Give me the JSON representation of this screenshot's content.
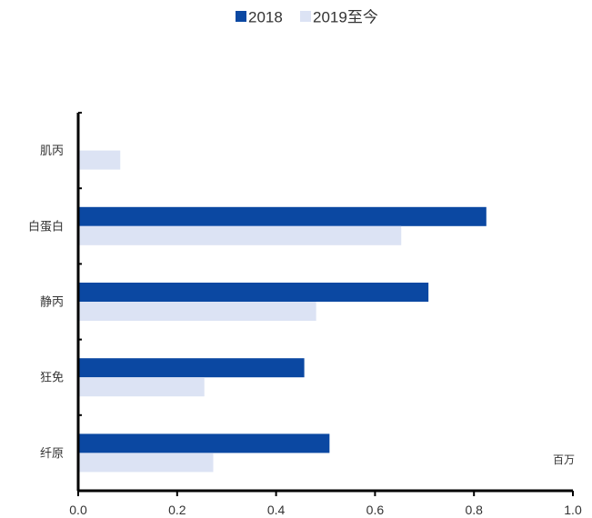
{
  "chart_data": {
    "type": "bar",
    "orientation": "horizontal",
    "categories": [
      "肌丙",
      "白蛋白",
      "静丙",
      "狂免",
      "纤原"
    ],
    "series": [
      {
        "name": "2018",
        "color": "#0B48A2",
        "values": [
          0,
          0.825,
          0.708,
          0.457,
          0.508
        ]
      },
      {
        "name": "2019至今",
        "color": "#DCE3F4",
        "values": [
          0.085,
          0.653,
          0.481,
          0.255,
          0.273
        ]
      }
    ],
    "xlim": [
      0,
      1.0
    ],
    "xticks": [
      0.0,
      0.2,
      0.4,
      0.6,
      0.8,
      1.0
    ],
    "xtick_labels": [
      "0.0",
      "0.2",
      "0.4",
      "0.6",
      "0.8",
      "1.0"
    ],
    "unit_label": "百万",
    "legend_position": "top-center",
    "grid": false
  }
}
